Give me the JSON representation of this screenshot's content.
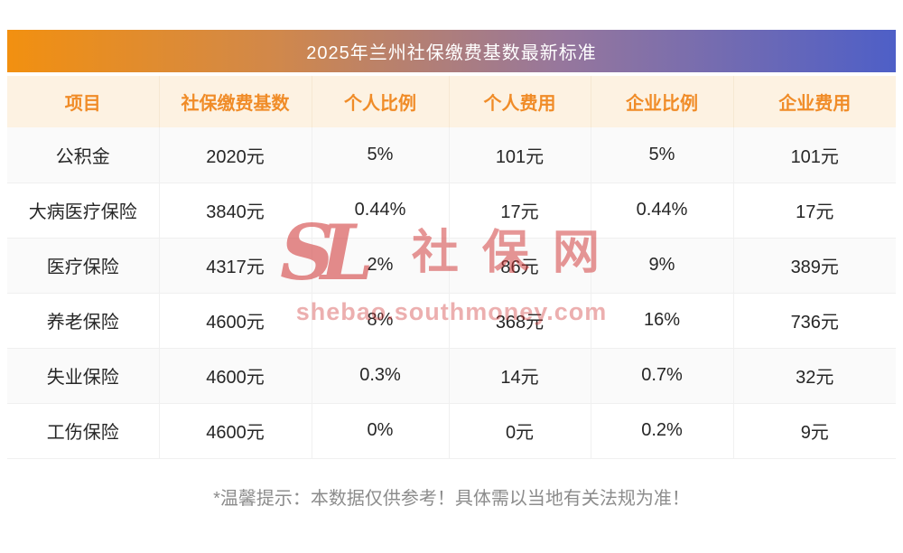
{
  "title": "2025年兰州社保缴费基数最新标准",
  "table": {
    "headers": [
      "项目",
      "社保缴费基数",
      "个人比例",
      "个人费用",
      "企业比例",
      "企业费用"
    ],
    "rows": [
      [
        "公积金",
        "2020元",
        "5%",
        "101元",
        "5%",
        "101元"
      ],
      [
        "大病医疗保险",
        "3840元",
        "0.44%",
        "17元",
        "0.44%",
        "17元"
      ],
      [
        "医疗保险",
        "4317元",
        "2%",
        "86元",
        "9%",
        "389元"
      ],
      [
        "养老保险",
        "4600元",
        "8%",
        "368元",
        "16%",
        "736元"
      ],
      [
        "失业保险",
        "4600元",
        "0.3%",
        "14元",
        "0.7%",
        "32元"
      ],
      [
        "工伤保险",
        "4600元",
        "0%",
        "0元",
        "0.2%",
        "9元"
      ]
    ]
  },
  "footer_note": "*温馨提示：本数据仅供参考！具体需以当地有关法规为准！",
  "watermark": {
    "logo_text": "SL",
    "site_name": "社保网",
    "site_url": "shebao.southmoney.com"
  },
  "colors": {
    "title_gradient_left": "#f29010",
    "title_gradient_right": "#4e5fc7",
    "column_header_bg": "#fdf2e2",
    "column_header_text": "#f08c28",
    "body_text": "#262626",
    "footer_text": "#8c8c8c",
    "watermark_red": "#cf3030"
  },
  "chart_data": {
    "type": "table",
    "title": "2025年兰州社保缴费基数最新标准",
    "columns": [
      "项目",
      "社保缴费基数",
      "个人比例",
      "个人费用",
      "企业比例",
      "企业费用"
    ],
    "rows": [
      [
        "公积金",
        "2020元",
        "5%",
        "101元",
        "5%",
        "101元"
      ],
      [
        "大病医疗保险",
        "3840元",
        "0.44%",
        "17元",
        "0.44%",
        "17元"
      ],
      [
        "医疗保险",
        "4317元",
        "2%",
        "86元",
        "9%",
        "389元"
      ],
      [
        "养老保险",
        "4600元",
        "8%",
        "368元",
        "16%",
        "736元"
      ],
      [
        "失业保险",
        "4600元",
        "0.3%",
        "14元",
        "0.7%",
        "32元"
      ],
      [
        "工伤保险",
        "4600元",
        "0%",
        "0元",
        "0.2%",
        "9元"
      ]
    ],
    "note": "*温馨提示：本数据仅供参考！具体需以当地有关法规为准！"
  }
}
